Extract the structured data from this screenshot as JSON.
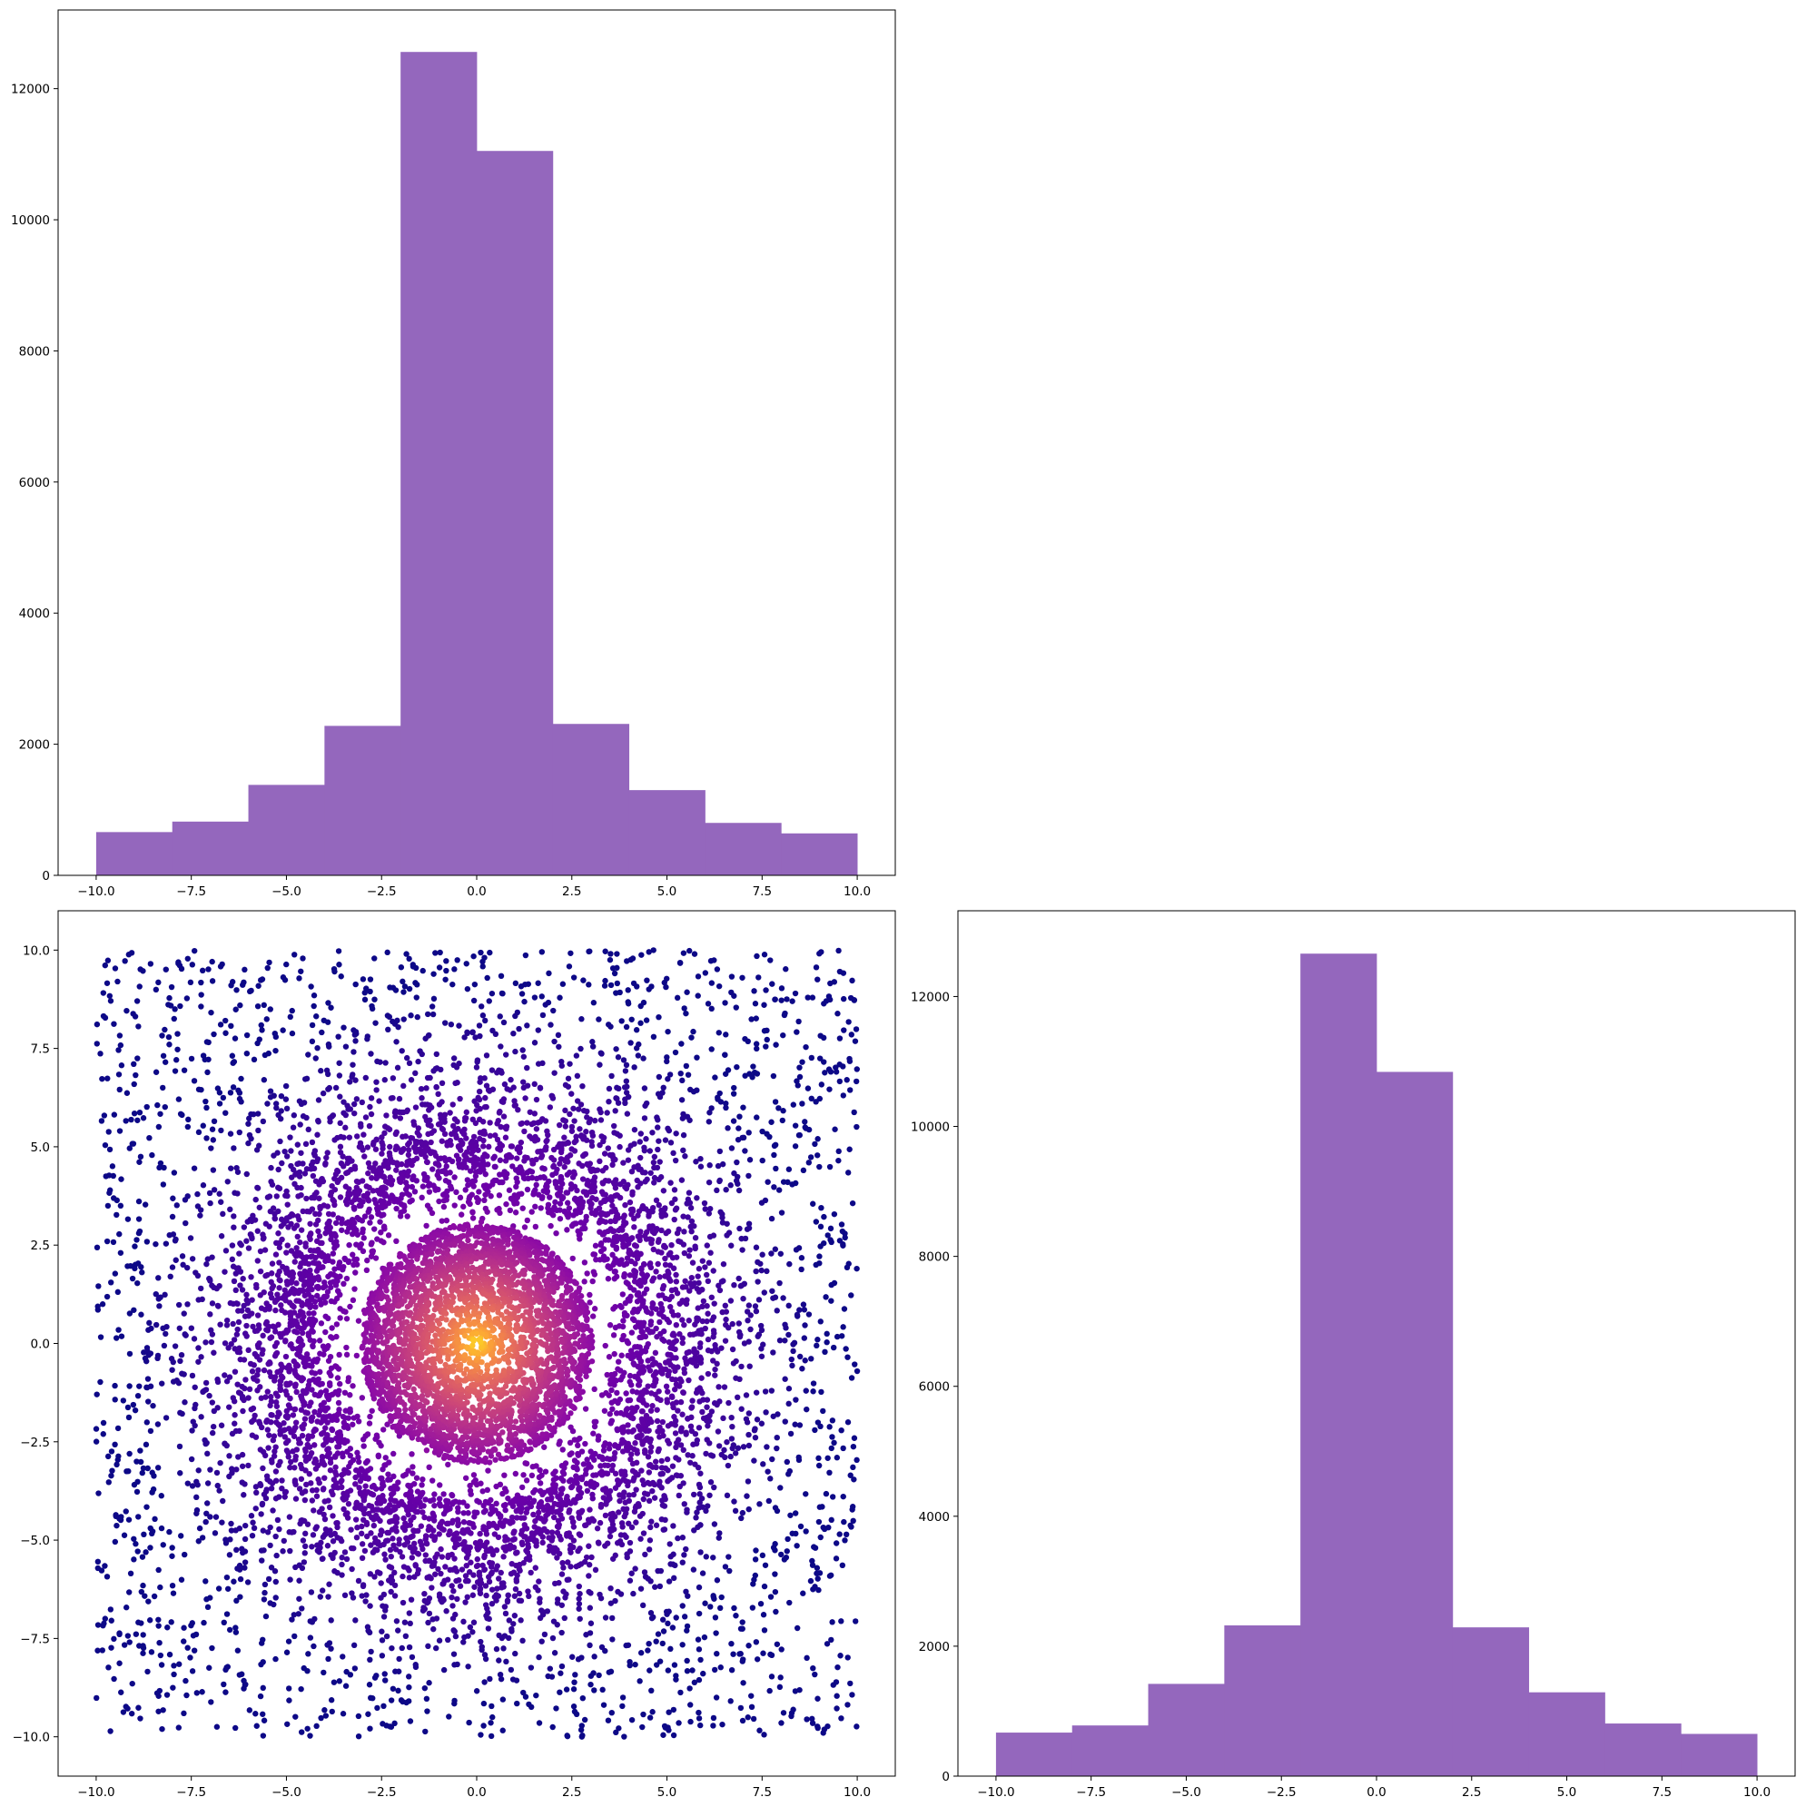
{
  "figure": {
    "background": "#ffffff",
    "layout": "2x2 grid, top-right panel empty"
  },
  "chart_data": [
    {
      "id": "hist-top-left",
      "type": "bar",
      "panel": "top-left",
      "title": "",
      "xlabel": "",
      "ylabel": "",
      "bar_color": "#9467bd",
      "bin_edges": [
        -10,
        -8,
        -6,
        -4,
        -2,
        0,
        2,
        4,
        6,
        8,
        10
      ],
      "values": [
        660,
        820,
        1380,
        2280,
        12560,
        11050,
        2310,
        1300,
        800,
        640
      ],
      "xlim": [
        -11,
        11
      ],
      "ylim": [
        0,
        13200
      ],
      "xticks": [
        -10,
        -7.5,
        -5,
        -2.5,
        0,
        2.5,
        5,
        7.5,
        10
      ],
      "xtick_labels": [
        "−10.0",
        "−7.5",
        "−5.0",
        "−2.5",
        "0.0",
        "2.5",
        "5.0",
        "7.5",
        "10.0"
      ],
      "yticks": [
        0,
        2000,
        4000,
        6000,
        8000,
        10000,
        12000
      ],
      "ytick_labels": [
        "0",
        "2000",
        "4000",
        "6000",
        "8000",
        "10000",
        "12000"
      ],
      "grid": false,
      "legend": "none"
    },
    {
      "id": "scatter-bottom-left",
      "type": "scatter",
      "panel": "bottom-left",
      "title": "",
      "xlabel": "",
      "ylabel": "",
      "colormap": "plasma",
      "color_encoding": "distance from origin (yellow at center, dark purple at edges)",
      "colormap_stops": [
        "#0d0887",
        "#3d049b",
        "#6a00a8",
        "#8f0da4",
        "#b12a90",
        "#cc4778",
        "#e16462",
        "#f2844b",
        "#fca636",
        "#fcce25",
        "#f0f921"
      ],
      "distribution": "points uniform-ish on [-10,10]x[-10,10], dense disk of radius ~3 around origin, denser ring around radius ~5-7",
      "x_range": [
        -10,
        10
      ],
      "y_range": [
        -10,
        10
      ],
      "xlim": [
        -11,
        11
      ],
      "ylim": [
        -11,
        11
      ],
      "xticks": [
        -10,
        -7.5,
        -5,
        -2.5,
        0,
        2.5,
        5,
        7.5,
        10
      ],
      "xtick_labels": [
        "−10.0",
        "−7.5",
        "−5.0",
        "−2.5",
        "0.0",
        "2.5",
        "5.0",
        "7.5",
        "10.0"
      ],
      "yticks": [
        -10,
        -7.5,
        -5,
        -2.5,
        0,
        2.5,
        5,
        7.5,
        10
      ],
      "ytick_labels": [
        "−10.0",
        "−7.5",
        "−5.0",
        "−2.5",
        "0.0",
        "2.5",
        "5.0",
        "7.5",
        "10.0"
      ],
      "grid": false,
      "legend": "none"
    },
    {
      "id": "hist-bottom-right",
      "type": "bar",
      "panel": "bottom-right",
      "title": "",
      "xlabel": "",
      "ylabel": "",
      "bar_color": "#9467bd",
      "bin_edges": [
        -10,
        -8,
        -6,
        -4,
        -2,
        0,
        2,
        4,
        6,
        8,
        10
      ],
      "values": [
        670,
        780,
        1420,
        2320,
        12660,
        10840,
        2290,
        1290,
        810,
        650
      ],
      "xlim": [
        -11,
        11
      ],
      "ylim": [
        0,
        13320
      ],
      "xticks": [
        -10,
        -7.5,
        -5,
        -2.5,
        0,
        2.5,
        5,
        7.5,
        10
      ],
      "xtick_labels": [
        "−10.0",
        "−7.5",
        "−5.0",
        "−2.5",
        "0.0",
        "2.5",
        "5.0",
        "7.5",
        "10.0"
      ],
      "yticks": [
        0,
        2000,
        4000,
        6000,
        8000,
        10000,
        12000
      ],
      "ytick_labels": [
        "0",
        "2000",
        "4000",
        "6000",
        "8000",
        "10000",
        "12000"
      ],
      "grid": false,
      "legend": "none"
    }
  ]
}
